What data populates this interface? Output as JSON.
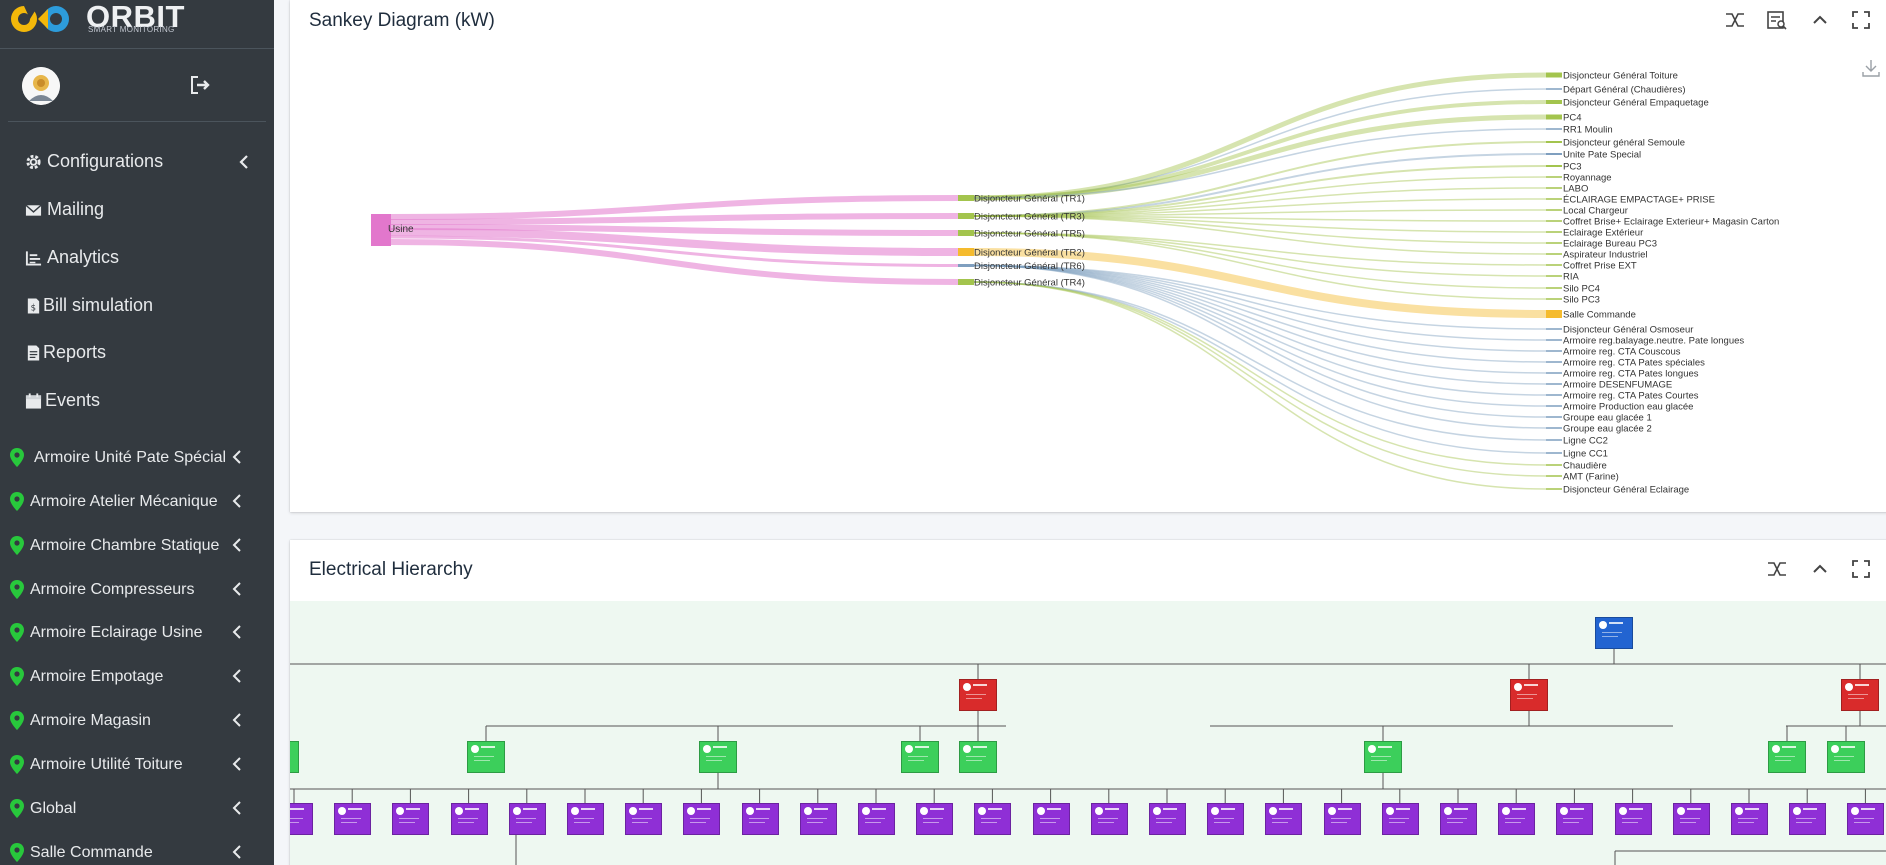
{
  "app": {
    "name": "ORBIT",
    "tagline": "SMART MONITORING"
  },
  "sidebar": {
    "menu": [
      {
        "label": "Configurations",
        "icon": "gear-icon",
        "has_chevron": true
      },
      {
        "label": "Mailing",
        "icon": "envelope-icon",
        "has_chevron": false
      },
      {
        "label": "Analytics",
        "icon": "analytics-icon",
        "has_chevron": false
      },
      {
        "label": "Bill simulation",
        "icon": "bill-icon",
        "has_chevron": false
      },
      {
        "label": "Reports",
        "icon": "file-icon",
        "has_chevron": false
      },
      {
        "label": "Events",
        "icon": "calendar-icon",
        "has_chevron": false
      }
    ],
    "devices": [
      {
        "label": "Armoire Unité Pate Spécial"
      },
      {
        "label": "Armoire Atelier Mécanique"
      },
      {
        "label": "Armoire Chambre Statique"
      },
      {
        "label": "Armoire Compresseurs"
      },
      {
        "label": "Armoire Eclairage Usine"
      },
      {
        "label": "Armoire Empotage"
      },
      {
        "label": "Armoire Magasin"
      },
      {
        "label": "Armoire Utilité Toiture"
      },
      {
        "label": "Global"
      },
      {
        "label": "Salle Commande"
      }
    ],
    "pin_color": "#28c83c"
  },
  "sankey": {
    "title": "Sankey Diagram (kW)",
    "source": "Usine",
    "source_color": "#e277cc",
    "mid": [
      {
        "label": "Disjoncteur Général (TR1)",
        "color": "#a3c44d"
      },
      {
        "label": "Disjoncteur Général (TR3)",
        "color": "#a3c44d"
      },
      {
        "label": "Disjoncteur Général (TR5)",
        "color": "#a3c44d"
      },
      {
        "label": "Disjoncteur Général (TR2)",
        "color": "#f5bb2e"
      },
      {
        "label": "Disjoncteur Général (TR6)",
        "color": "#7f9fbf"
      },
      {
        "label": "Disjoncteur Général (TR4)",
        "color": "#a3c44d"
      }
    ],
    "targets": [
      "Disjoncteur Général Toiture",
      "Départ Général (Chaudières)",
      "Disjoncteur Général Empaquetage",
      "PC4",
      "RR1 Moulin",
      "Disjoncteur général Semoule",
      "Unite Pate Special",
      "PC3",
      "Royannage",
      "LABO",
      "ÉCLAIRAGE EMPACTAGE+ PRISE",
      "Local Chargeur",
      "Coffret Brise+ Eclairage Exterieur+ Magasin Carton",
      "Eclairage Extérieur",
      "Eclairage Bureau PC3",
      "Aspirateur Industriel",
      "Coffret Prise EXT",
      "RIA",
      "Silo PC4",
      "Silo PC3",
      "Salle Commande",
      "Disjoncteur Général Osmoseur",
      "Armoire reg.balayage.neutre. Pate longues",
      "Armoire reg. CTA Couscous",
      "Armoire reg. CTA Pates spéciales",
      "Armoire reg. CTA Pates longues",
      "Armoire DESENFUMAGE",
      "Armoire reg. CTA Pates Courtes",
      "Armoire Production eau glacée",
      "Groupe eau glacée 1",
      "Groupe eau glacée 2",
      "Ligne CC2",
      "Ligne CC1",
      "Chaudière",
      "AMT (Farine)",
      "Disjoncteur Général Eclairage"
    ]
  },
  "hierarchy": {
    "title": "Electrical Hierarchy",
    "colors": {
      "root": "#2264d1",
      "level1": "#d92b2b",
      "level2": "#3ccf5b",
      "level3": "#8f2fd6"
    }
  }
}
